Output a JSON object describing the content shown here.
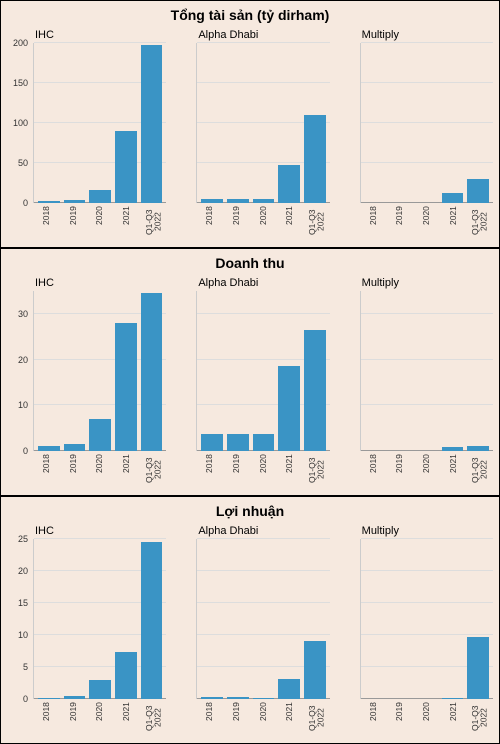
{
  "bar_color": "#3a94c5",
  "bg_color": "#f6e9df",
  "grid_color": "#ddd",
  "categories": [
    "2018",
    "2019",
    "2020",
    "2021",
    "Q1-Q3 2022"
  ],
  "panels": [
    {
      "title": "Tổng tài sản (tỷ dirham)",
      "charts": [
        {
          "label": "IHC",
          "ymax": 200,
          "ystep": 50,
          "values": [
            3,
            4,
            16,
            90,
            198
          ]
        },
        {
          "label": "Alpha Dhabi",
          "ymax": 200,
          "ystep": 50,
          "values": [
            5,
            5,
            5,
            47,
            110
          ]
        },
        {
          "label": "Multiply",
          "ymax": 200,
          "ystep": 50,
          "values": [
            0,
            0,
            0,
            13,
            30
          ]
        }
      ]
    },
    {
      "title": "Doanh thu",
      "charts": [
        {
          "label": "IHC",
          "ymax": 35,
          "yticks": [
            0,
            10,
            20,
            30
          ],
          "values": [
            1,
            1.6,
            7,
            28,
            34.5
          ]
        },
        {
          "label": "Alpha Dhabi",
          "ymax": 35,
          "yticks": [
            0,
            10,
            20,
            30
          ],
          "values": [
            3.8,
            3.7,
            3.8,
            18.5,
            26.5
          ]
        },
        {
          "label": "Multiply",
          "ymax": 35,
          "yticks": [
            0,
            10,
            20,
            30
          ],
          "values": [
            0,
            0,
            0,
            0.8,
            1.2
          ]
        }
      ]
    },
    {
      "title": "Lợi nhuận",
      "charts": [
        {
          "label": "IHC",
          "ymax": 25,
          "ystep": 5,
          "values": [
            0.2,
            0.5,
            3,
            7.3,
            24.5
          ]
        },
        {
          "label": "Alpha Dhabi",
          "ymax": 25,
          "ystep": 5,
          "values": [
            0.3,
            0.3,
            0.2,
            3.2,
            9
          ]
        },
        {
          "label": "Multiply",
          "ymax": 25,
          "ystep": 5,
          "values": [
            0,
            0,
            0,
            0.1,
            9.7
          ]
        }
      ]
    }
  ]
}
